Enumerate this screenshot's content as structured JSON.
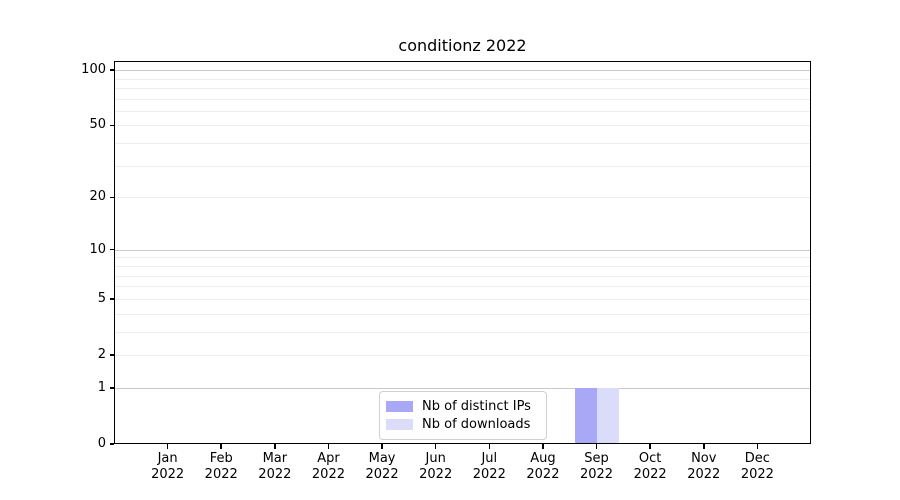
{
  "chart_data": {
    "type": "bar",
    "title": "conditionz 2022",
    "x_year": "2022",
    "categories": [
      "Jan",
      "Feb",
      "Mar",
      "Apr",
      "May",
      "Jun",
      "Jul",
      "Aug",
      "Sep",
      "Oct",
      "Nov",
      "Dec"
    ],
    "series": [
      {
        "name": "Nb of distinct IPs",
        "color": "#a8a8f6",
        "values": [
          0,
          0,
          0,
          0,
          0,
          0,
          0,
          0,
          1,
          0,
          0,
          0
        ]
      },
      {
        "name": "Nb of downloads",
        "color": "#dbdcfa",
        "values": [
          0,
          0,
          0,
          0,
          0,
          0,
          0,
          0,
          1,
          0,
          0,
          0
        ]
      }
    ],
    "y_scale": "log10(value+1)",
    "ylim": [
      0,
      112
    ],
    "y_labeled_ticks": [
      0,
      1,
      2,
      5,
      10,
      20,
      50,
      100
    ],
    "y_major_gridlines": [
      1,
      10,
      100
    ],
    "y_minor_gridlines": [
      2,
      3,
      4,
      5,
      6,
      7,
      8,
      9,
      20,
      30,
      40,
      50,
      60,
      70,
      80,
      90
    ],
    "grid": "on",
    "legend_position": "lower-center-left inside plot",
    "colors": {
      "major_grid": "#c9c9c9",
      "minor_grid": "#ededed",
      "spine": "#000000",
      "legend_border": "#d0d0d0",
      "background": "#ffffff"
    }
  }
}
